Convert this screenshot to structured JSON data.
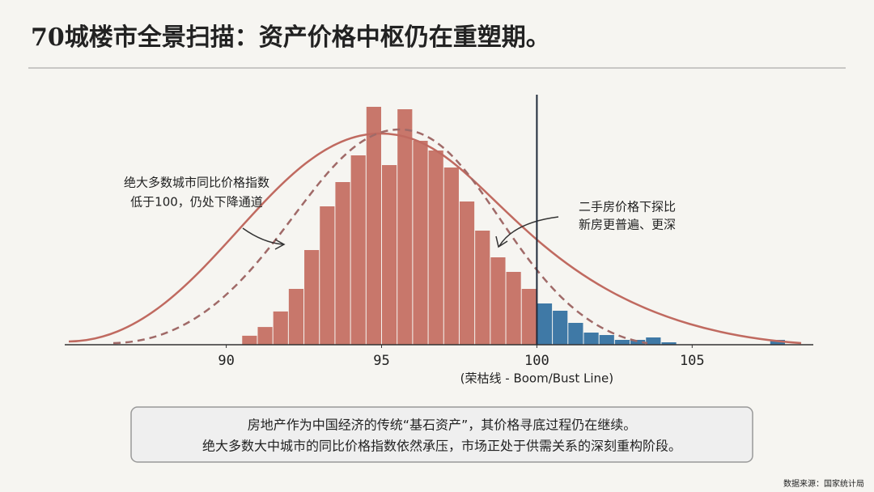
{
  "chart_data": {
    "type": "histogram",
    "title": "70城楼市全景扫描：资产价格中枢仍在重塑期。",
    "bins": [
      90.5,
      91,
      91.5,
      92,
      92.5,
      93,
      93.5,
      94,
      94.5,
      95,
      95.5,
      96,
      96.5,
      97,
      97.5,
      98,
      98.5,
      99,
      99.5,
      100,
      100.5,
      101,
      101.5,
      102,
      102.5,
      103,
      103.5,
      104,
      104.5,
      105,
      105.5,
      106,
      106.5,
      107,
      107.5,
      108
    ],
    "counts": [
      3.7,
      7.3,
      13.7,
      23,
      39,
      57,
      67,
      78,
      98,
      74,
      97,
      84,
      80,
      73,
      59,
      47,
      36,
      30,
      23,
      17,
      14,
      9,
      5,
      4,
      2,
      2,
      3,
      1,
      0,
      0,
      0,
      0,
      0,
      0,
      2
    ],
    "color": "#c8776b",
    "color_above": "#3f79a6",
    "threshold": 100,
    "threshold_label": "(荣枯线 - Boom/Bust Line)",
    "xlim": [
      84.8,
      108.9
    ],
    "xticks": [
      90,
      95,
      100,
      105
    ],
    "ylim": [
      0,
      100
    ],
    "annotations": [
      "绝大多数城市同比价格指数",
      "低于100，仍处下降通道",
      "二手房价格下探比",
      "新房更普遍、更深"
    ],
    "summary": [
      "房地产作为中国经济的传统“基石资产”，其价格寻底过程仍在继续。",
      "绝大多数大中城市的同比价格指数依然承压，市场正处于供需关系的深刻重构阶段。"
    ],
    "source": "数据来源：国家统计局"
  }
}
